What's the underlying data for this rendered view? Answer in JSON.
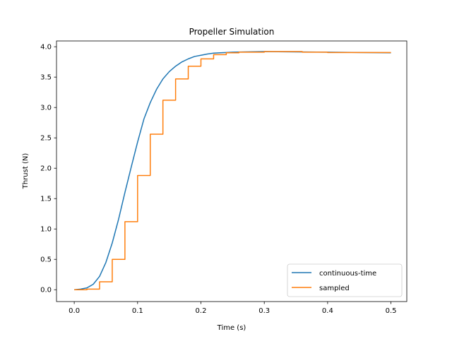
{
  "chart_data": {
    "type": "line",
    "title": "Propeller Simulation",
    "xlabel": "Time (s)",
    "ylabel": "Thrust (N)",
    "xlim": [
      -0.028,
      0.525
    ],
    "ylim": [
      -0.195,
      4.095
    ],
    "xticks": [
      0.0,
      0.1,
      0.2,
      0.3,
      0.4,
      0.5
    ],
    "xtick_labels": [
      "0.0",
      "0.1",
      "0.2",
      "0.3",
      "0.4",
      "0.5"
    ],
    "yticks": [
      0.0,
      0.5,
      1.0,
      1.5,
      2.0,
      2.5,
      3.0,
      3.5,
      4.0
    ],
    "ytick_labels": [
      "0.0",
      "0.5",
      "1.0",
      "1.5",
      "2.0",
      "2.5",
      "3.0",
      "3.5",
      "4.0"
    ],
    "grid": false,
    "legend_position": "lower-right",
    "series": [
      {
        "name": "continuous-time",
        "color": "#1f77b4",
        "style": "line",
        "x": [
          0.0,
          0.01,
          0.02,
          0.03,
          0.04,
          0.05,
          0.06,
          0.07,
          0.08,
          0.09,
          0.1,
          0.11,
          0.12,
          0.13,
          0.14,
          0.15,
          0.16,
          0.17,
          0.18,
          0.19,
          0.2,
          0.21,
          0.22,
          0.23,
          0.24,
          0.25,
          0.27,
          0.3,
          0.35,
          0.4,
          0.45,
          0.5
        ],
        "y": [
          0.0,
          0.01,
          0.03,
          0.09,
          0.22,
          0.45,
          0.77,
          1.16,
          1.6,
          2.02,
          2.43,
          2.81,
          3.08,
          3.3,
          3.47,
          3.59,
          3.68,
          3.75,
          3.8,
          3.84,
          3.86,
          3.88,
          3.895,
          3.9,
          3.905,
          3.91,
          3.915,
          3.92,
          3.915,
          3.91,
          3.905,
          3.9
        ]
      },
      {
        "name": "sampled",
        "color": "#ff7f0e",
        "style": "step-post",
        "x": [
          0.0,
          0.02,
          0.04,
          0.06,
          0.08,
          0.1,
          0.12,
          0.14,
          0.16,
          0.18,
          0.2,
          0.22,
          0.24,
          0.26,
          0.3,
          0.36,
          0.4,
          0.5
        ],
        "y": [
          0.0,
          0.01,
          0.13,
          0.5,
          1.12,
          1.88,
          2.56,
          3.12,
          3.47,
          3.68,
          3.8,
          3.87,
          3.9,
          3.91,
          3.92,
          3.91,
          3.905,
          3.905
        ]
      }
    ]
  }
}
